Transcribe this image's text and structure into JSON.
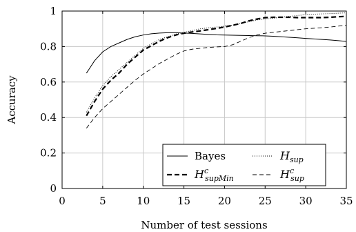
{
  "chart_data": {
    "type": "line",
    "xlabel": "Number of test sessions",
    "ylabel": "Accuracy",
    "xlim": [
      0,
      35
    ],
    "ylim": [
      0,
      1
    ],
    "xticks": [
      "0",
      "5",
      "10",
      "15",
      "20",
      "25",
      "30",
      "35"
    ],
    "yticks": [
      "0",
      "0.2",
      "0.4",
      "0.6",
      "0.8",
      "1"
    ],
    "grid": true,
    "legend_position": "bottom-right",
    "series": [
      {
        "name": "Bayes",
        "style": "solid",
        "color": "#000000",
        "x": [
          3,
          4,
          5,
          6,
          7,
          8,
          9,
          10,
          11,
          12,
          13,
          14,
          15,
          16,
          17,
          18,
          19,
          20,
          21,
          22,
          23,
          24,
          25,
          26,
          27,
          28,
          29,
          30,
          31,
          32,
          33,
          34,
          35
        ],
        "y": [
          0.65,
          0.72,
          0.77,
          0.8,
          0.82,
          0.84,
          0.855,
          0.865,
          0.872,
          0.876,
          0.878,
          0.878,
          0.876,
          0.874,
          0.871,
          0.868,
          0.866,
          0.865,
          0.864,
          0.863,
          0.862,
          0.861,
          0.86,
          0.858,
          0.855,
          0.852,
          0.849,
          0.846,
          0.843,
          0.84,
          0.837,
          0.833,
          0.829
        ]
      },
      {
        "name": "H_sup",
        "name_main": "H",
        "name_sub": "sup",
        "name_sup": "",
        "style": "dotted",
        "color": "#000000",
        "x": [
          3,
          4,
          5,
          6,
          7,
          8,
          9,
          10,
          11,
          12,
          13,
          14,
          15,
          16,
          17,
          18,
          19,
          20,
          21,
          22,
          23,
          24,
          25,
          26,
          27,
          28,
          29,
          30,
          31,
          32,
          33,
          34,
          35
        ],
        "y": [
          0.43,
          0.51,
          0.58,
          0.63,
          0.67,
          0.71,
          0.75,
          0.79,
          0.815,
          0.84,
          0.855,
          0.87,
          0.88,
          0.89,
          0.9,
          0.905,
          0.91,
          0.915,
          0.92,
          0.93,
          0.94,
          0.95,
          0.955,
          0.96,
          0.965,
          0.97,
          0.975,
          0.98,
          0.982,
          0.984,
          0.986,
          0.988,
          0.99
        ]
      },
      {
        "name": "H^c_supMin",
        "name_main": "H",
        "name_sub": "supMin",
        "name_sup": "c",
        "style": "thick-dashed",
        "color": "#000000",
        "x": [
          3,
          4,
          5,
          6,
          7,
          8,
          9,
          10,
          11,
          12,
          13,
          14,
          15,
          16,
          17,
          18,
          19,
          20,
          21,
          22,
          23,
          24,
          25,
          26,
          27,
          28,
          29,
          30,
          31,
          32,
          33,
          34,
          35
        ],
        "y": [
          0.41,
          0.49,
          0.56,
          0.61,
          0.65,
          0.7,
          0.74,
          0.78,
          0.805,
          0.83,
          0.85,
          0.865,
          0.875,
          0.882,
          0.888,
          0.895,
          0.902,
          0.91,
          0.92,
          0.93,
          0.945,
          0.955,
          0.963,
          0.965,
          0.965,
          0.965,
          0.963,
          0.963,
          0.963,
          0.963,
          0.965,
          0.968,
          0.97
        ]
      },
      {
        "name": "H^c_sup",
        "name_main": "H",
        "name_sub": "sup",
        "name_sup": "c",
        "style": "thin-dashed",
        "color": "#000000",
        "x": [
          3,
          4,
          5,
          6,
          7,
          8,
          9,
          10,
          11,
          12,
          13,
          14,
          15,
          16,
          17,
          18,
          19,
          20,
          21,
          22,
          23,
          24,
          25,
          26,
          27,
          28,
          29,
          30,
          31,
          32,
          33,
          34,
          35
        ],
        "y": [
          0.34,
          0.4,
          0.45,
          0.49,
          0.53,
          0.57,
          0.61,
          0.645,
          0.675,
          0.705,
          0.73,
          0.755,
          0.775,
          0.785,
          0.79,
          0.795,
          0.798,
          0.8,
          0.81,
          0.83,
          0.85,
          0.865,
          0.875,
          0.88,
          0.885,
          0.89,
          0.895,
          0.9,
          0.903,
          0.906,
          0.91,
          0.915,
          0.92
        ]
      }
    ]
  }
}
